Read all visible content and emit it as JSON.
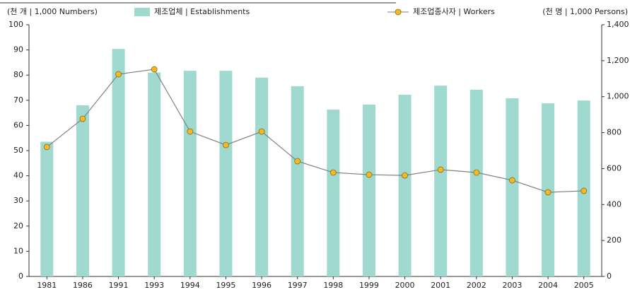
{
  "chart_data": {
    "type": "bar_line",
    "y_label": "(천 개 | 1,000 Numbers)",
    "y2_label": "(천 명 | 1,000 Persons)",
    "categories": [
      "1981",
      "1986",
      "1991",
      "1993",
      "1994",
      "1995",
      "1996",
      "1997",
      "1998",
      "1999",
      "2000",
      "2001",
      "2002",
      "2003",
      "2004",
      "2005"
    ],
    "series": [
      {
        "name": "제조업체 | Establishments",
        "type": "bar",
        "color": "#9fd9cf",
        "values": [
          53.5,
          68,
          90.4,
          81,
          81.7,
          81.7,
          79,
          75.6,
          66.3,
          68.3,
          72.2,
          75.8,
          74.2,
          70.8,
          68.8,
          69.9
        ]
      },
      {
        "name": "제조업종사자 | Workers",
        "type": "line",
        "axis": "y2",
        "color": "#f5b921",
        "line_color": "#808080",
        "values": [
          720,
          877,
          1125,
          1152,
          806,
          731,
          806,
          641,
          578,
          566,
          562,
          594,
          578,
          535,
          468,
          476
        ]
      }
    ],
    "ylim": [
      0,
      100
    ],
    "yticks": [
      0,
      10,
      20,
      30,
      40,
      50,
      60,
      70,
      80,
      90,
      100
    ],
    "y2lim": [
      0,
      1400
    ],
    "y2ticks": [
      0,
      200,
      400,
      600,
      800,
      {
        "value": 1000,
        "label": "1,000"
      },
      {
        "value": 1200,
        "label": "1,200"
      },
      {
        "value": 1400,
        "label": "1,400"
      }
    ]
  }
}
